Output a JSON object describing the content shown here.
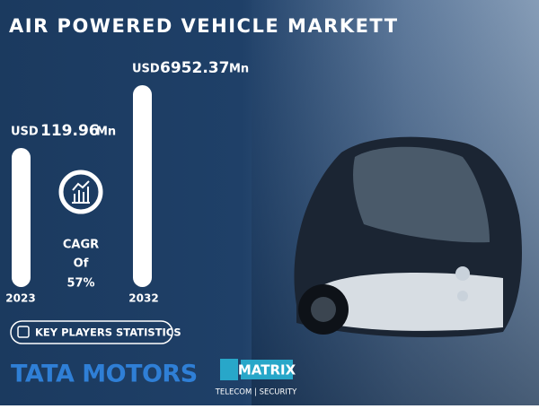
{
  "header": {
    "title": "AIR POWERED VEHICLE MARKETT"
  },
  "stats": [
    {
      "currency": "USD",
      "amount": "119.96",
      "unit": "Mn",
      "year": "2023"
    },
    {
      "currency": "USD",
      "amount": "6952.37",
      "unit": "Mn",
      "year": "2032"
    }
  ],
  "cagr": {
    "lines": [
      "CAGR",
      "Of",
      "57%"
    ]
  },
  "button": {
    "label": "KEY PLAYERS STATISTICS"
  },
  "logos": {
    "tata": "TATA MOTORS",
    "matrix": {
      "name": "MATRIX",
      "tagline": "TELECOM | SECURITY"
    }
  }
}
